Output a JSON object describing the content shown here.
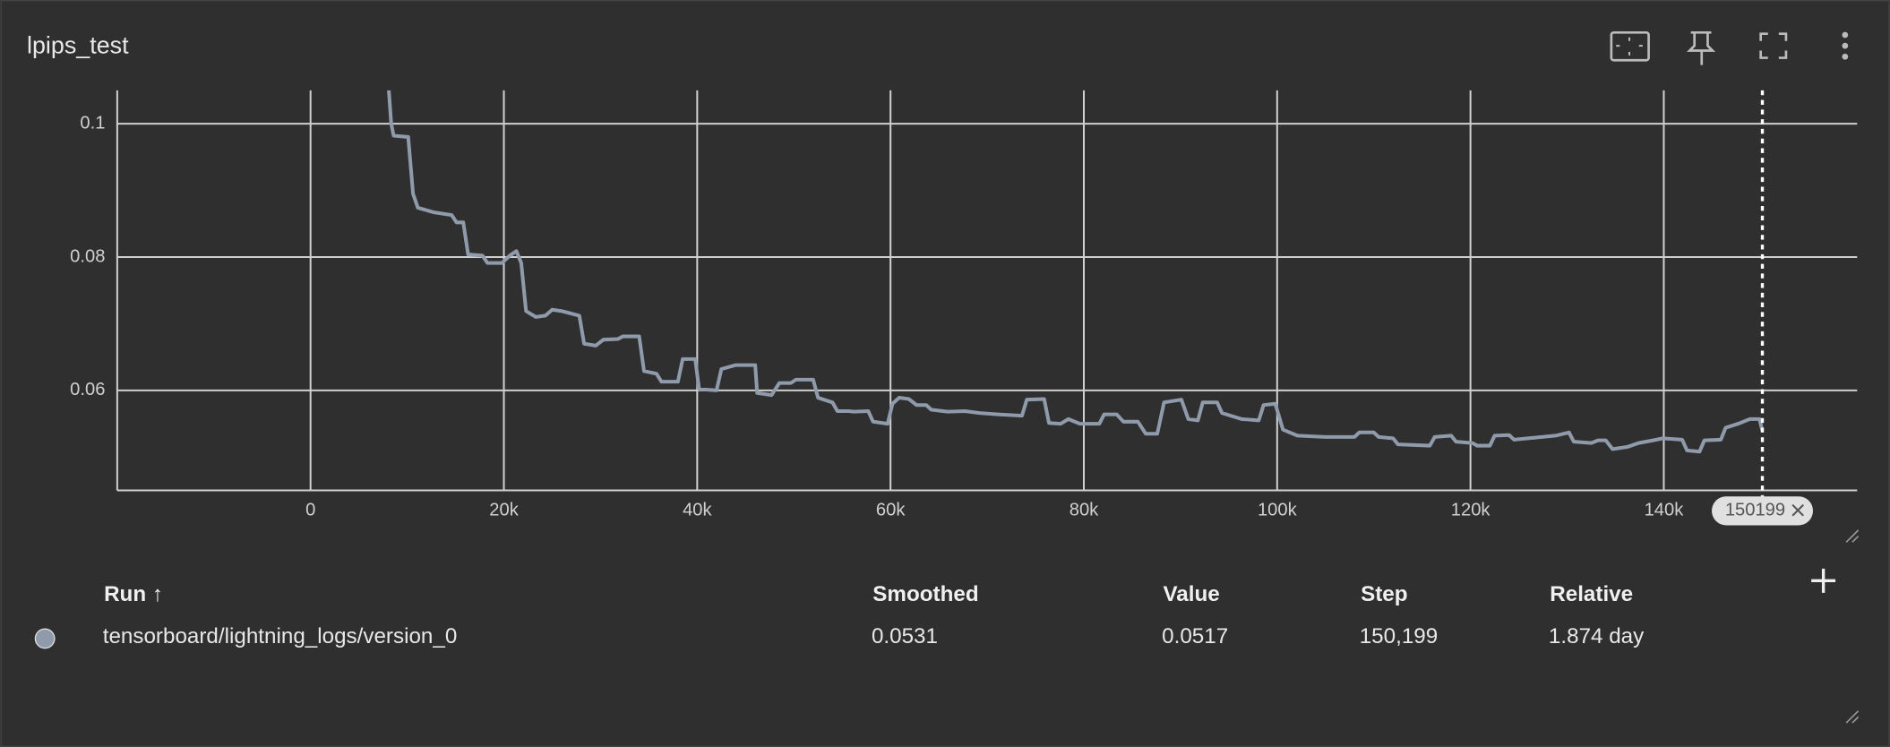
{
  "chart_data": {
    "type": "line",
    "title": "lpips_test",
    "x": [
      8100,
      8350,
      8600,
      10100,
      10600,
      11100,
      12800,
      14600,
      15100,
      15800,
      16300,
      17800,
      18300,
      19800,
      20600,
      21300,
      21800,
      22300,
      23300,
      24300,
      25000,
      26000,
      27800,
      28300,
      29500,
      30300,
      31800,
      32300,
      34000,
      34500,
      35800,
      36300,
      38000,
      38500,
      39800,
      40200,
      42000,
      42500,
      44000,
      46000,
      46200,
      47700,
      48500,
      49700,
      50200,
      52000,
      52500,
      54000,
      54500,
      55700,
      56200,
      57700,
      58200,
      59700,
      60200,
      60900,
      61900,
      62700,
      63700,
      64200,
      65900,
      67700,
      69200,
      71100,
      73600,
      74100,
      75900,
      76400,
      77600,
      78400,
      79600,
      81600,
      82100,
      83400,
      84100,
      85600,
      86400,
      87600,
      88300,
      90100,
      90800,
      91800,
      92300,
      93800,
      94300,
      96300,
      98100,
      98600,
      99800,
      100600,
      102100,
      105000,
      108000,
      108500,
      110000,
      110500,
      112000,
      112500,
      115800,
      116300,
      118000,
      118500,
      120200,
      120700,
      122000,
      122500,
      124000,
      124500,
      128800,
      130200,
      130700,
      132500,
      133200,
      134000,
      134700,
      136200,
      137400,
      138900,
      139900,
      141900,
      142400,
      143700,
      144200,
      145900,
      146400,
      147700,
      148900,
      149900,
      150199
    ],
    "series": [
      {
        "color": "#8f9bab",
        "values": [
          0.105,
          0.1,
          0.0982,
          0.098,
          0.0895,
          0.0874,
          0.0867,
          0.0863,
          0.0852,
          0.0852,
          0.0804,
          0.0802,
          0.0791,
          0.0791,
          0.0802,
          0.0809,
          0.0791,
          0.0719,
          0.071,
          0.0712,
          0.0721,
          0.0719,
          0.0712,
          0.067,
          0.0667,
          0.0676,
          0.0677,
          0.0681,
          0.0681,
          0.0629,
          0.0625,
          0.0613,
          0.0613,
          0.0647,
          0.0647,
          0.0602,
          0.06,
          0.0632,
          0.0638,
          0.0638,
          0.0596,
          0.0593,
          0.0611,
          0.0611,
          0.0616,
          0.0616,
          0.0589,
          0.0582,
          0.0569,
          0.0569,
          0.0568,
          0.0569,
          0.0553,
          0.055,
          0.058,
          0.0589,
          0.0587,
          0.0578,
          0.0578,
          0.0571,
          0.0568,
          0.0569,
          0.0566,
          0.0564,
          0.0562,
          0.0586,
          0.0587,
          0.0551,
          0.055,
          0.0557,
          0.055,
          0.055,
          0.0564,
          0.0564,
          0.0553,
          0.0553,
          0.0535,
          0.0535,
          0.0582,
          0.0586,
          0.0557,
          0.0555,
          0.0582,
          0.0582,
          0.0566,
          0.0557,
          0.0555,
          0.0578,
          0.058,
          0.0541,
          0.0532,
          0.053,
          0.053,
          0.0537,
          0.0537,
          0.053,
          0.0528,
          0.0519,
          0.0517,
          0.053,
          0.0532,
          0.0523,
          0.0521,
          0.0517,
          0.0517,
          0.0532,
          0.0533,
          0.0526,
          0.0532,
          0.0537,
          0.0523,
          0.0521,
          0.0525,
          0.0525,
          0.0512,
          0.0515,
          0.0521,
          0.0525,
          0.0528,
          0.0526,
          0.051,
          0.0508,
          0.0525,
          0.0526,
          0.0544,
          0.055,
          0.0557,
          0.0557,
          0.0539
        ]
      }
    ],
    "xlim": [
      -20000,
      160000
    ],
    "xticks": [
      0,
      {
        "value": 20000,
        "label": "20k"
      },
      {
        "value": 40000,
        "label": "40k"
      },
      {
        "value": 60000,
        "label": "60k"
      },
      {
        "value": 80000,
        "label": "80k"
      },
      {
        "value": 100000,
        "label": "100k"
      },
      {
        "value": 120000,
        "label": "120k"
      },
      {
        "value": 140000,
        "label": "140k"
      }
    ],
    "ylim": [
      0.045,
      0.105
    ],
    "yticks": [
      0.06,
      0.08,
      0.1
    ],
    "grid": true,
    "hover_step": 150199
  },
  "table": {
    "headers": [
      "Run ↑",
      "Smoothed",
      "Value",
      "Step",
      "Relative"
    ],
    "rows": [
      [
        "tensorboard/lightning_logs/version_0",
        "0.0531",
        "0.0517",
        "150,199",
        "1.874 day"
      ]
    ]
  }
}
